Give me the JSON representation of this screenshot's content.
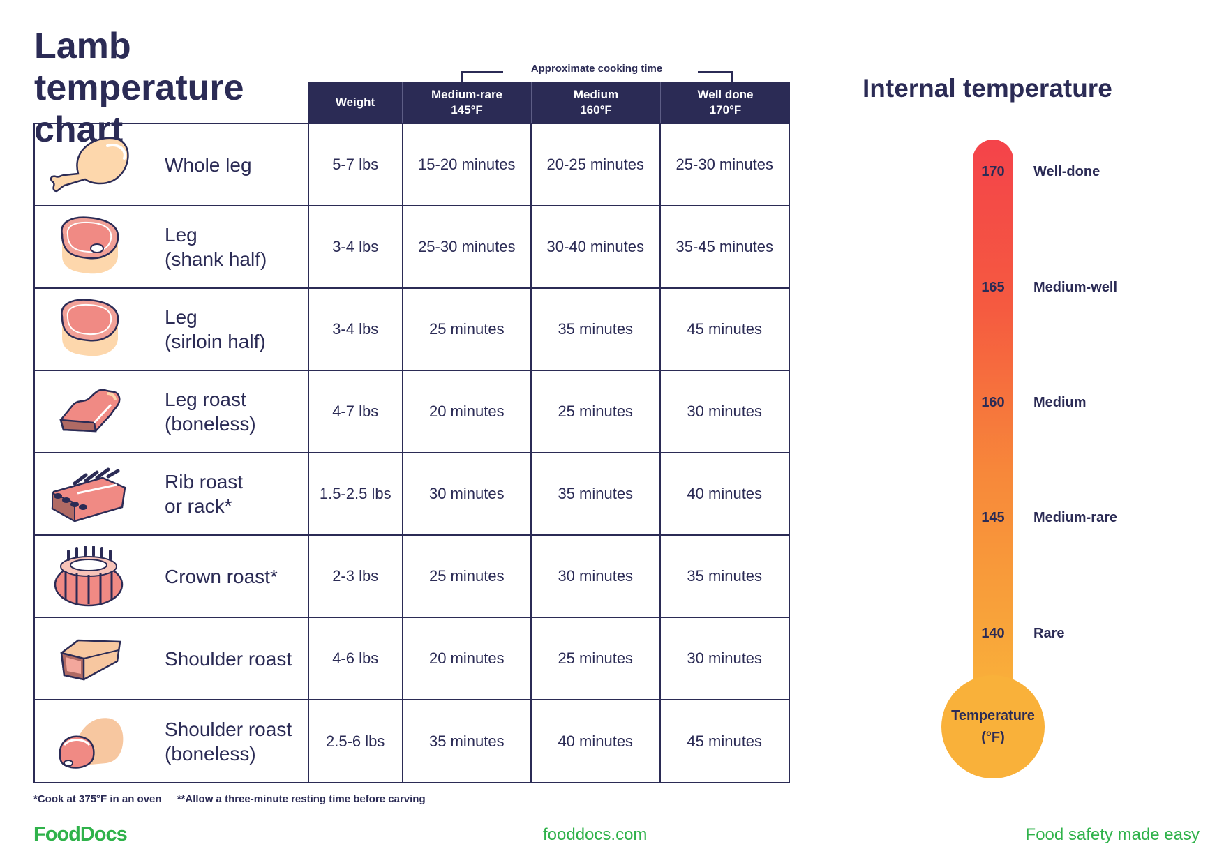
{
  "title": "Lamb temperature chart",
  "table": {
    "group_label": "Approximate cooking time",
    "headers": {
      "weight": "Weight",
      "medium_rare": "Medium-rare",
      "medium_rare_temp": "145°F",
      "medium": "Medium",
      "medium_temp": "160°F",
      "well_done": "Well done",
      "well_done_temp": "170°F"
    },
    "rows": [
      {
        "cut": "Whole leg",
        "icon": "lamb-leg-icon",
        "weight": "5-7 lbs",
        "medium_rare": "15-20 minutes",
        "medium": "20-25 minutes",
        "well_done": "25-30 minutes"
      },
      {
        "cut": "Leg\n(shank half)",
        "icon": "steak-bone-icon",
        "weight": "3-4 lbs",
        "medium_rare": "25-30 minutes",
        "medium": "30-40 minutes",
        "well_done": "35-45 minutes"
      },
      {
        "cut": "Leg\n(sirloin half)",
        "icon": "steak-icon",
        "weight": "3-4 lbs",
        "medium_rare": "25 minutes",
        "medium": "35 minutes",
        "well_done": "45 minutes"
      },
      {
        "cut": "Leg roast\n(boneless)",
        "icon": "boneless-roast-icon",
        "weight": "4-7 lbs",
        "medium_rare": "20 minutes",
        "medium": "25 minutes",
        "well_done": "30 minutes"
      },
      {
        "cut": "Rib roast\nor rack*",
        "icon": "rib-rack-icon",
        "weight": "1.5-2.5 lbs",
        "medium_rare": "30 minutes",
        "medium": "35 minutes",
        "well_done": "40 minutes"
      },
      {
        "cut": "Crown roast*",
        "icon": "crown-roast-icon",
        "weight": "2-3 lbs",
        "medium_rare": "25 minutes",
        "medium": "30 minutes",
        "well_done": "35 minutes"
      },
      {
        "cut": "Shoulder roast",
        "icon": "shoulder-roast-icon",
        "weight": "4-6 lbs",
        "medium_rare": "20 minutes",
        "medium": "25 minutes",
        "well_done": "30 minutes"
      },
      {
        "cut": "Shoulder roast\n(boneless)",
        "icon": "boneless-shoulder-icon",
        "weight": "2.5-6 lbs",
        "medium_rare": "35 minutes",
        "medium": "40 minutes",
        "well_done": "45 minutes"
      }
    ]
  },
  "footnotes": {
    "note1": "*Cook at 375°F in an oven",
    "note2": "**Allow a three-minute resting time before carving"
  },
  "thermometer": {
    "title": "Internal temperature",
    "bulb_line1": "Temperature",
    "bulb_line2": "(°F)",
    "ticks": [
      {
        "value": "170",
        "label": "Well-done"
      },
      {
        "value": "165",
        "label": "Medium-well"
      },
      {
        "value": "160",
        "label": "Medium"
      },
      {
        "value": "145",
        "label": "Medium-rare"
      },
      {
        "value": "140",
        "label": "Rare"
      }
    ],
    "colors": {
      "top": "#f4434a",
      "bottom": "#f9b13a"
    }
  },
  "footer": {
    "logo": "FoodDocs",
    "site": "fooddocs.com",
    "tagline": "Food safety made easy"
  },
  "colors": {
    "navy": "#2b2b55",
    "brand_green": "#2fb24a"
  }
}
